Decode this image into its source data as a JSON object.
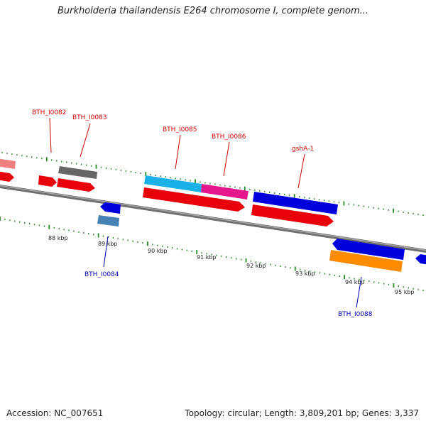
{
  "title": "Burkholderia thailandensis E264 chromosome I, complete genom...",
  "footer": {
    "accession": "Accession: NC_007651",
    "summary": "Topology: circular; Length: 3,809,201 bp; Genes: 3,337"
  },
  "colors": {
    "backbone": "#888888",
    "tick": "#2a8a2a",
    "plus_label": "#cc0000",
    "minus_label": "#0000aa"
  },
  "scale_labels": [
    "88 kbp",
    "89 kbp",
    "90 kbp",
    "91 kbp",
    "92 kbp",
    "93 kbp",
    "94 kbp",
    "95 kbp"
  ],
  "gene_labels": [
    {
      "text": "BTH_I0082",
      "strand": "plus"
    },
    {
      "text": "BTH_I0083",
      "strand": "plus"
    },
    {
      "text": "BTH_I0085",
      "strand": "plus"
    },
    {
      "text": "BTH_I0086",
      "strand": "plus"
    },
    {
      "text": "gshA-1",
      "strand": "plus"
    },
    {
      "text": "BTH_I0084",
      "strand": "minus"
    },
    {
      "text": "BTH_I0088",
      "strand": "minus"
    }
  ]
}
